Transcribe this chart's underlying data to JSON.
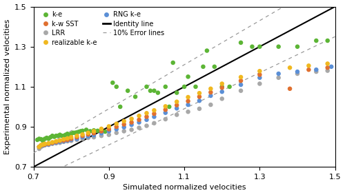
{
  "xlim": [
    0.7,
    1.5
  ],
  "ylim": [
    0.7,
    1.5
  ],
  "xlabel": "Simulated normalized velocities",
  "ylabel": "Experimental normalized velocities",
  "xticks": [
    0.7,
    0.9,
    1.1,
    1.3,
    1.5
  ],
  "yticks": [
    0.7,
    0.9,
    1.1,
    1.3,
    1.5
  ],
  "colors": {
    "ke": "#5cb535",
    "LRR": "#a8a8a8",
    "RNG": "#5b8fd6",
    "kwSST": "#e07030",
    "realizable": "#f0b820"
  },
  "ke_x": [
    0.71,
    0.715,
    0.72,
    0.725,
    0.73,
    0.735,
    0.74,
    0.745,
    0.75,
    0.755,
    0.76,
    0.765,
    0.77,
    0.775,
    0.78,
    0.785,
    0.79,
    0.795,
    0.8,
    0.805,
    0.81,
    0.815,
    0.82,
    0.825,
    0.83,
    0.84,
    0.85,
    0.86,
    0.87,
    0.88,
    0.89,
    0.9,
    0.91,
    0.92,
    0.93,
    0.95,
    0.97,
    1.0,
    1.01,
    1.02,
    1.03,
    1.05,
    1.06,
    1.07,
    1.08,
    1.1,
    1.11,
    1.13,
    1.15,
    1.16,
    1.18,
    1.2,
    1.22,
    1.25,
    1.28,
    1.3,
    1.35,
    1.4,
    1.45,
    1.48
  ],
  "ke_y": [
    0.835,
    0.84,
    0.838,
    0.83,
    0.84,
    0.845,
    0.84,
    0.848,
    0.855,
    0.85,
    0.855,
    0.855,
    0.86,
    0.855,
    0.855,
    0.86,
    0.865,
    0.86,
    0.865,
    0.87,
    0.87,
    0.872,
    0.875,
    0.878,
    0.88,
    0.885,
    0.878,
    0.882,
    0.88,
    0.878,
    0.876,
    0.88,
    1.12,
    1.1,
    1.0,
    1.08,
    1.05,
    1.1,
    1.08,
    1.08,
    1.07,
    1.1,
    1.0,
    1.22,
    1.07,
    1.1,
    1.15,
    1.1,
    1.2,
    1.28,
    1.2,
    1.1,
    1.1,
    1.32,
    1.3,
    1.3,
    1.3,
    1.3,
    1.33,
    1.33
  ],
  "LRR_x": [
    0.715,
    0.72,
    0.725,
    0.73,
    0.74,
    0.75,
    0.76,
    0.77,
    0.78,
    0.79,
    0.8,
    0.815,
    0.83,
    0.845,
    0.86,
    0.88,
    0.9,
    0.92,
    0.94,
    0.96,
    0.98,
    1.0,
    1.02,
    1.05,
    1.08,
    1.11,
    1.14,
    1.17,
    1.2,
    1.25,
    1.3,
    1.35,
    1.4,
    1.45,
    1.48
  ],
  "LRR_y": [
    0.79,
    0.8,
    0.805,
    0.808,
    0.81,
    0.815,
    0.818,
    0.82,
    0.825,
    0.828,
    0.83,
    0.835,
    0.84,
    0.845,
    0.848,
    0.855,
    0.86,
    0.87,
    0.878,
    0.885,
    0.895,
    0.905,
    0.918,
    0.938,
    0.96,
    0.975,
    0.99,
    1.01,
    1.04,
    1.08,
    1.115,
    1.145,
    1.165,
    1.175,
    1.18
  ],
  "RNG_x": [
    0.715,
    0.72,
    0.725,
    0.73,
    0.74,
    0.75,
    0.76,
    0.77,
    0.78,
    0.79,
    0.8,
    0.815,
    0.83,
    0.845,
    0.86,
    0.88,
    0.9,
    0.92,
    0.94,
    0.96,
    0.98,
    1.0,
    1.02,
    1.05,
    1.08,
    1.11,
    1.14,
    1.17,
    1.2,
    1.25,
    1.3,
    1.35,
    1.4,
    1.45,
    1.49
  ],
  "RNG_y": [
    0.8,
    0.805,
    0.808,
    0.81,
    0.812,
    0.818,
    0.822,
    0.825,
    0.828,
    0.832,
    0.835,
    0.84,
    0.848,
    0.852,
    0.858,
    0.868,
    0.878,
    0.888,
    0.898,
    0.91,
    0.922,
    0.935,
    0.95,
    0.97,
    0.992,
    1.01,
    1.03,
    1.055,
    1.075,
    1.11,
    1.145,
    1.165,
    1.175,
    1.185,
    1.2
  ],
  "kwSST_x": [
    0.715,
    0.72,
    0.725,
    0.73,
    0.74,
    0.75,
    0.76,
    0.77,
    0.78,
    0.79,
    0.8,
    0.815,
    0.83,
    0.845,
    0.86,
    0.88,
    0.9,
    0.92,
    0.94,
    0.96,
    0.98,
    1.0,
    1.02,
    1.05,
    1.08,
    1.11,
    1.14,
    1.17,
    1.2,
    1.25,
    1.3,
    1.38,
    1.43,
    1.48
  ],
  "kwSST_y": [
    0.8,
    0.808,
    0.81,
    0.812,
    0.815,
    0.82,
    0.825,
    0.83,
    0.832,
    0.835,
    0.84,
    0.848,
    0.855,
    0.862,
    0.868,
    0.878,
    0.888,
    0.9,
    0.912,
    0.922,
    0.935,
    0.95,
    0.965,
    0.985,
    1.008,
    1.028,
    1.05,
    1.072,
    1.095,
    1.13,
    1.16,
    1.09,
    1.185,
    1.195
  ],
  "realizable_x": [
    0.715,
    0.72,
    0.725,
    0.73,
    0.74,
    0.75,
    0.76,
    0.77,
    0.78,
    0.79,
    0.8,
    0.815,
    0.83,
    0.845,
    0.86,
    0.88,
    0.9,
    0.92,
    0.94,
    0.96,
    0.98,
    1.0,
    1.02,
    1.05,
    1.08,
    1.11,
    1.14,
    1.17,
    1.2,
    1.25,
    1.3,
    1.38,
    1.43,
    1.48
  ],
  "realizable_y": [
    0.8,
    0.808,
    0.812,
    0.815,
    0.818,
    0.823,
    0.828,
    0.832,
    0.838,
    0.842,
    0.848,
    0.855,
    0.862,
    0.87,
    0.878,
    0.89,
    0.902,
    0.915,
    0.928,
    0.94,
    0.955,
    0.968,
    0.982,
    1.002,
    1.025,
    1.048,
    1.068,
    1.09,
    1.115,
    1.148,
    1.178,
    1.195,
    1.205,
    1.215
  ]
}
